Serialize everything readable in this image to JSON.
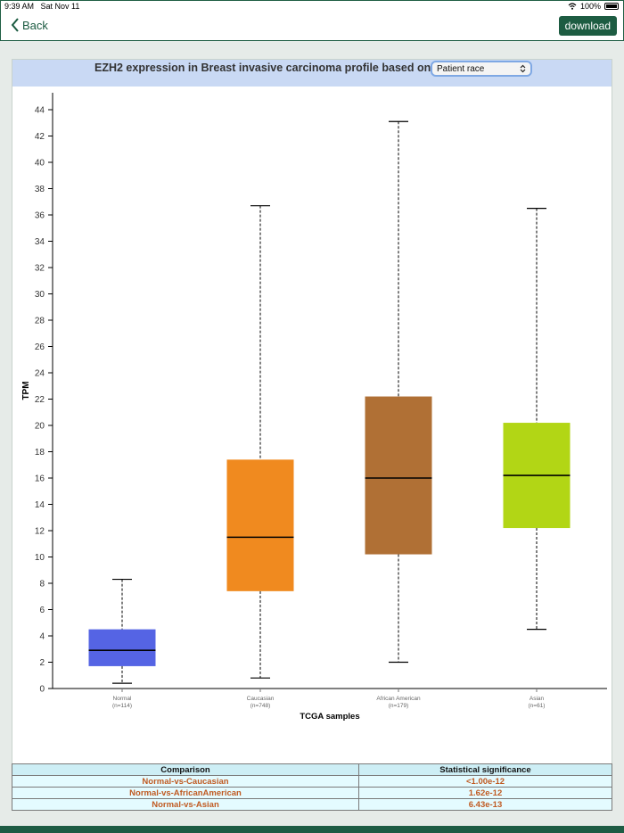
{
  "status": {
    "time": "9:39 AM",
    "date": "Sat Nov 11",
    "battery": "100%"
  },
  "nav": {
    "back_label": "Back",
    "download_label": "download"
  },
  "card": {
    "title": "EZH2 expression in Breast invasive carcinoma profile based on",
    "select_value": "Patient race"
  },
  "chart_data": {
    "type": "boxplot",
    "ylabel": "TPM",
    "xlabel": "TCGA samples",
    "ylim": [
      0,
      45
    ],
    "yticks": [
      0,
      2,
      4,
      6,
      8,
      10,
      12,
      14,
      16,
      18,
      20,
      22,
      24,
      26,
      28,
      30,
      32,
      34,
      36,
      38,
      40,
      42,
      44
    ],
    "grid": false,
    "groups": [
      {
        "name": "Normal",
        "n": "(n=114)",
        "min": 0.4,
        "q1": 1.7,
        "median": 2.9,
        "q3": 4.5,
        "max": 8.3,
        "color": "#5564e4"
      },
      {
        "name": "Caucasian",
        "n": "(n=748)",
        "min": 0.8,
        "q1": 7.4,
        "median": 11.5,
        "q3": 17.4,
        "max": 36.7,
        "color": "#f08a1f"
      },
      {
        "name": "African American",
        "n": "(n=179)",
        "min": 2.0,
        "q1": 10.2,
        "median": 16.0,
        "q3": 22.2,
        "max": 43.1,
        "color": "#b07035"
      },
      {
        "name": "Asian",
        "n": "(n=61)",
        "min": 4.5,
        "q1": 12.2,
        "median": 16.2,
        "q3": 20.2,
        "max": 36.5,
        "color": "#b2d615"
      }
    ]
  },
  "table": {
    "headers": [
      "Comparison",
      "Statistical significance"
    ],
    "rows": [
      {
        "comparison": "Normal-vs-Caucasian",
        "significance": "<1.00e-12"
      },
      {
        "comparison": "Normal-vs-AfricanAmerican",
        "significance": "1.62e-12"
      },
      {
        "comparison": "Normal-vs-Asian",
        "significance": "6.43e-13"
      }
    ]
  }
}
